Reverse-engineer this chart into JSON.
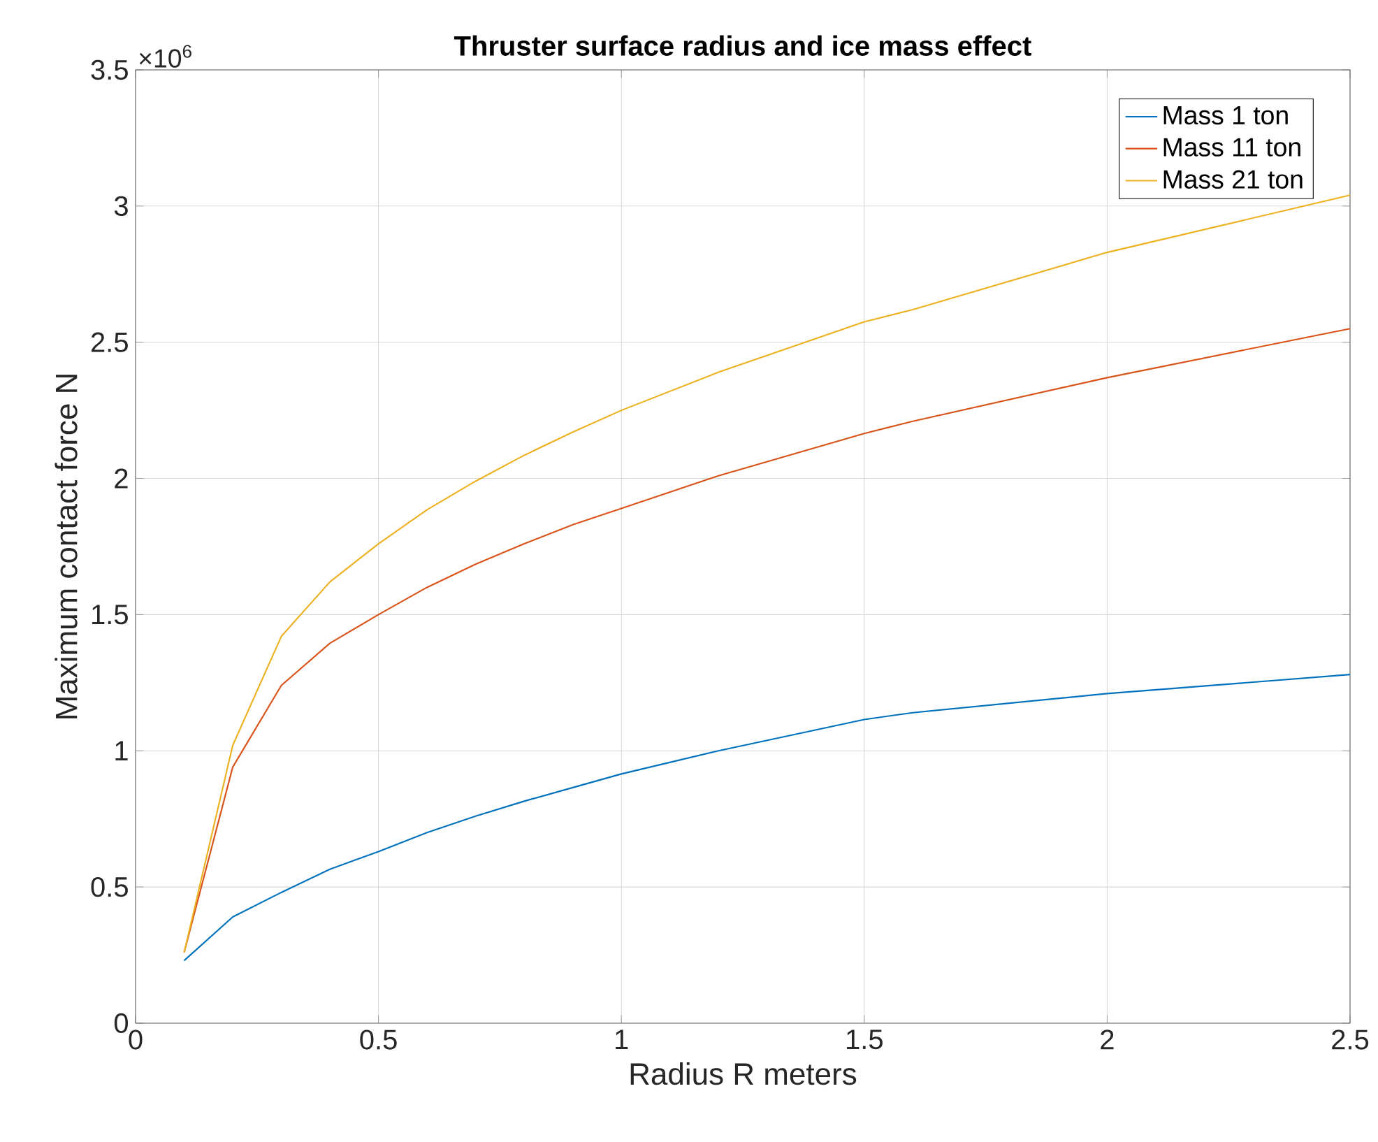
{
  "chart_data": {
    "type": "line",
    "title": "Thruster surface radius and ice mass effect",
    "xlabel": "Radius R meters",
    "ylabel": "Maximum contact force N",
    "annotations": [
      "×10$^{6}$"
    ],
    "x": [
      0.1,
      0.2,
      0.3,
      0.4,
      0.5,
      0.6,
      0.7,
      0.8,
      0.9,
      1.0,
      1.2,
      1.5,
      1.6,
      2.0,
      2.5
    ],
    "series": [
      {
        "name": "Mass 1 ton",
        "color": "#0072bd",
        "values": [
          0.23,
          0.39,
          0.48,
          0.565,
          0.63,
          0.7,
          0.76,
          0.815,
          0.865,
          0.915,
          1.0,
          1.115,
          1.14,
          1.21,
          1.28
        ]
      },
      {
        "name": "Mass 11 ton",
        "color": "#d95319",
        "values": [
          0.26,
          0.94,
          1.24,
          1.395,
          1.5,
          1.6,
          1.685,
          1.76,
          1.83,
          1.89,
          2.01,
          2.165,
          2.21,
          2.37,
          2.55
        ]
      },
      {
        "name": "Mass 21 ton",
        "color": "#edb120",
        "values": [
          0.26,
          1.02,
          1.42,
          1.62,
          1.76,
          1.885,
          1.99,
          2.085,
          2.17,
          2.25,
          2.39,
          2.575,
          2.62,
          2.83,
          3.04
        ]
      }
    ],
    "xlim": [
      0,
      2.5
    ],
    "xticks": [
      0,
      0.5,
      1,
      1.5,
      2,
      2.5
    ],
    "ylim": [
      0,
      3.5
    ],
    "yticks": [
      0,
      0.5,
      1,
      1.5,
      2,
      2.5,
      3,
      3.5
    ],
    "grid": true,
    "legend": "top right",
    "line_style": "solid"
  }
}
